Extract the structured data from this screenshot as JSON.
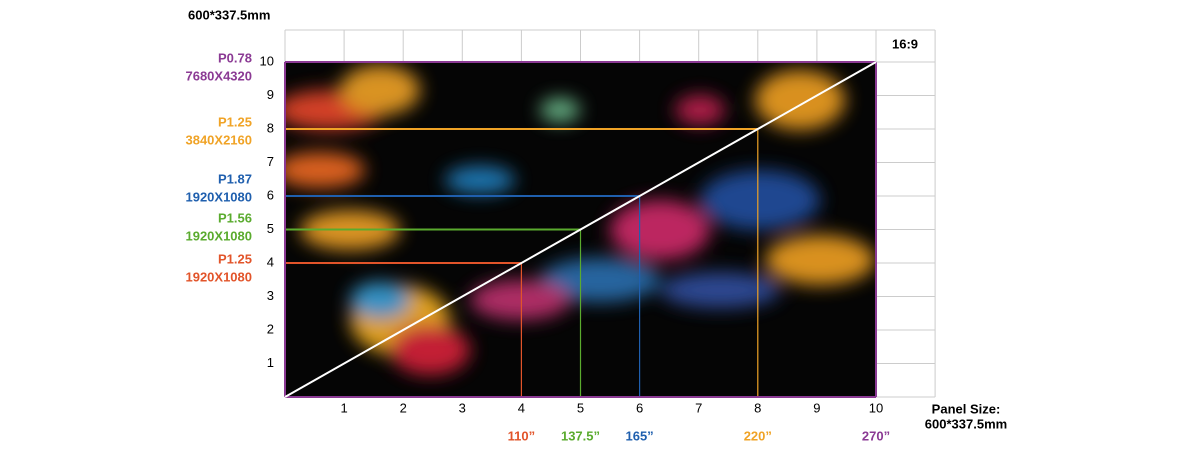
{
  "top_label": "600*337.5mm",
  "ratio": "16:9",
  "y_labels": [
    1,
    2,
    3,
    4,
    5,
    6,
    7,
    8,
    9,
    10
  ],
  "x_labels": [
    1,
    2,
    3,
    4,
    5,
    6,
    7,
    8,
    9,
    10
  ],
  "resolutions": [
    {
      "pitch": "P0.78",
      "resolution": "7680X4320",
      "color": "#8b3a94"
    },
    {
      "pitch": "P1.25",
      "resolution": "3840X2160",
      "color": "#f0a326"
    },
    {
      "pitch": "P1.87",
      "resolution": "1920X1080",
      "color": "#1f5fae"
    },
    {
      "pitch": "P1.56",
      "resolution": "1920X1080",
      "color": "#5aab2e"
    },
    {
      "pitch": "P1.25",
      "resolution": "1920X1080",
      "color": "#e2542a"
    }
  ],
  "sizes": [
    {
      "label": "110”",
      "color": "#e2542a"
    },
    {
      "label": "137.5”",
      "color": "#5aab2e"
    },
    {
      "label": "165”",
      "color": "#1f5fae"
    },
    {
      "label": "220”",
      "color": "#f0a326"
    },
    {
      "label": "270”",
      "color": "#8b3a94"
    }
  ],
  "panel_size": {
    "label": "Panel Size:",
    "value": "600*337.5mm"
  }
}
